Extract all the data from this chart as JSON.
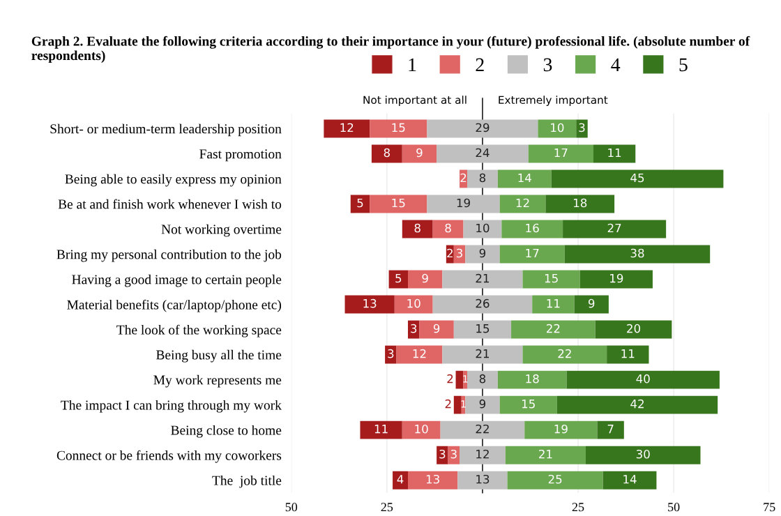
{
  "chart_data": {
    "type": "bar",
    "orientation": "horizontal",
    "title": "Graph 2. Evaluate the following criteria according to their importance in your (future) professional life. (absolute number of respondents)",
    "categories": [
      "Short- or medium-term leadership position",
      "Fast promotion",
      "Being able to easily express my opinion",
      "Be at and finish work whenever I wish to",
      "Not working overtime",
      "Bring my personal contribution to the job",
      "Having a good image to certain people",
      "Material benefits (car/laptop/phone etc)",
      "The look of the working space",
      "Being busy all the time",
      "My work represents me",
      "The impact I can bring through my work",
      "Being close to home",
      "Connect or be friends with my coworkers",
      "The  job title"
    ],
    "series": [
      {
        "name": "1",
        "color": "#a61c1c",
        "values": [
          12,
          8,
          null,
          5,
          8,
          2,
          5,
          13,
          3,
          3,
          2,
          2,
          11,
          3,
          4
        ],
        "base": [
          -41.5,
          -29,
          null,
          -34.5,
          -21,
          -9.5,
          -24.5,
          -36,
          -19.5,
          -25.5,
          -7,
          -7.5,
          -32,
          -12,
          -23.5
        ],
        "value_labels": [
          "12",
          "8",
          null,
          "5",
          "8",
          "2",
          "5",
          "13",
          "3",
          "3",
          "2",
          "2",
          "11",
          "3",
          "4"
        ]
      },
      {
        "name": "2",
        "color": "#e06666",
        "values": [
          15,
          9,
          2,
          15,
          8,
          3,
          9,
          10,
          9,
          12,
          1,
          1,
          10,
          3,
          13
        ],
        "base": [
          -29.5,
          -21,
          -6,
          -29.5,
          -13,
          -7.5,
          -19.5,
          -23,
          -16.5,
          -22.5,
          -5,
          -5.5,
          -21,
          -9,
          -19.5
        ],
        "value_labels": [
          "15",
          "9",
          "2",
          "15",
          "8",
          "3",
          "9",
          "10",
          "9",
          "12",
          "1",
          "1",
          "10",
          "3",
          "13"
        ]
      },
      {
        "name": "3",
        "color": "#c0c0c0",
        "values": [
          29,
          24,
          8,
          19,
          10,
          9,
          21,
          26,
          15,
          21,
          8,
          9,
          22,
          12,
          13
        ],
        "base": [
          -14.5,
          -12,
          -4,
          -14.5,
          -5,
          -4.5,
          -10.5,
          -13,
          -7.5,
          -10.5,
          -4,
          -4.5,
          -11,
          -6,
          -6.5
        ],
        "value_labels": [
          "29",
          "24",
          "8",
          "19",
          "10",
          "9",
          "21",
          "26",
          "15",
          "21",
          "8",
          "9",
          "22",
          "12",
          "13"
        ]
      },
      {
        "name": "4",
        "color": "#6aa84f",
        "values": [
          10,
          17,
          14,
          12,
          16,
          17,
          15,
          11,
          22,
          22,
          18,
          15,
          19,
          21,
          25
        ],
        "base": [
          14.5,
          12,
          4,
          4.5,
          5,
          4.5,
          10.5,
          13,
          7.5,
          10.5,
          4,
          4.5,
          11,
          6,
          6.5
        ],
        "value_labels": [
          "10",
          "17",
          "14",
          "12",
          "16",
          "17",
          "15",
          "11",
          "22",
          "22",
          "18",
          "15",
          "19",
          "21",
          "25"
        ]
      },
      {
        "name": "5",
        "color": "#38761d",
        "values": [
          3,
          11,
          45,
          18,
          27,
          38,
          19,
          9,
          20,
          11,
          40,
          42,
          7,
          30,
          14
        ],
        "base": [
          24.5,
          29,
          18,
          16.5,
          21,
          21.5,
          25.5,
          24,
          29.5,
          32.5,
          22,
          19.5,
          30,
          27,
          31.5
        ],
        "value_labels": [
          "3",
          "11",
          "45",
          "18",
          "27",
          "38",
          "19",
          "9",
          "20",
          "11",
          "40",
          "42",
          "7",
          "30",
          "14"
        ]
      }
    ],
    "xlim": [
      -50,
      75
    ],
    "xticks": [
      {
        "value": -50,
        "label": "50"
      },
      {
        "value": -25,
        "label": "25"
      },
      {
        "value": 0,
        "label": null
      },
      25,
      50,
      75
    ],
    "ref_lines": [
      {
        "axis": "x",
        "value": 0,
        "color": "#333333"
      }
    ],
    "annotations": [
      "Not important at all",
      "Extremely important"
    ],
    "grid": "x",
    "legend": "top"
  }
}
